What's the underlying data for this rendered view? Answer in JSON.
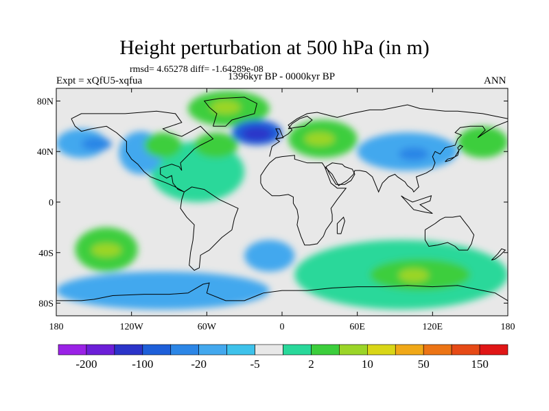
{
  "title": "Height perturbation at 500 hPa (in m)",
  "rmsd_text": "rmsd= 4.65278  diff= -1.64289e-08",
  "experiment": "Expt = xQfU5-xqfua",
  "period": "1396kyr BP - 0000kyr BP",
  "season": "ANN",
  "x_axis": {
    "ticks": [
      "180",
      "120W",
      "60W",
      "0",
      "60E",
      "120E",
      "180"
    ]
  },
  "y_axis": {
    "ticks": [
      "80N",
      "40N",
      "0",
      "40S",
      "80S"
    ]
  },
  "colorbar": {
    "colors": [
      "#9a22e6",
      "#6c1fd8",
      "#2b34c9",
      "#1e5fd9",
      "#2c86e6",
      "#43a8ee",
      "#3ec2eb",
      "#e8e8e8",
      "#29d89a",
      "#3cce3c",
      "#9bd528",
      "#d9d617",
      "#f0a818",
      "#ec7415",
      "#e64a16",
      "#e01616"
    ],
    "labels": [
      "-200",
      "-100",
      "-20",
      "-5",
      "2",
      "10",
      "50",
      "150"
    ]
  },
  "chart_data": {
    "type": "heatmap",
    "title": "Height perturbation at 500 hPa (in m)",
    "units": "m",
    "variable": "500 hPa geopotential height perturbation",
    "experiment": "Expt = xQfU5-xqfua",
    "period": "1396kyr BP - 0000kyr BP",
    "season": "ANN",
    "rmsd": 4.65278,
    "diff": -1.64289e-08,
    "xlim": [
      -180,
      180
    ],
    "ylim": [
      -90,
      90
    ],
    "xticks": [
      "180",
      "120W",
      "60W",
      "0",
      "60E",
      "120E",
      "180"
    ],
    "yticks": [
      "80N",
      "40N",
      "0",
      "40S",
      "80S"
    ],
    "contour_levels": [
      "-200",
      "-100",
      "-20",
      "-5",
      "2",
      "10",
      "50",
      "150"
    ],
    "regions": [
      {
        "lon": [
          -105,
          -30
        ],
        "lat": [
          0,
          48
        ],
        "level": "2 to 10",
        "shape": "blob"
      },
      {
        "lon": [
          -130,
          -95
        ],
        "lat": [
          22,
          56
        ],
        "level": "-5 to -20",
        "shape": "blob"
      },
      {
        "lon": [
          -180,
          -140
        ],
        "lat": [
          35,
          58
        ],
        "level": "-5 to -20",
        "shape": "blob"
      },
      {
        "lon": [
          -110,
          -80
        ],
        "lat": [
          35,
          55
        ],
        "level": "10 to 50",
        "shape": "blob"
      },
      {
        "lon": [
          -70,
          -35
        ],
        "lat": [
          35,
          55
        ],
        "level": "10 to 50",
        "shape": "blob"
      },
      {
        "lon": [
          -75,
          -10
        ],
        "lat": [
          60,
          88
        ],
        "level": "10 to 50",
        "shape": "blob"
      },
      {
        "lon": [
          -40,
          0
        ],
        "lat": [
          45,
          65
        ],
        "level": "-20 to -100",
        "shape": "blob"
      },
      {
        "lon": [
          5,
          60
        ],
        "lat": [
          35,
          65
        ],
        "level": "10 to 50",
        "shape": "blob"
      },
      {
        "lon": [
          60,
          140
        ],
        "lat": [
          25,
          55
        ],
        "level": "-5 to -20",
        "shape": "blob"
      },
      {
        "lon": [
          140,
          180
        ],
        "lat": [
          35,
          60
        ],
        "level": "10 to 50",
        "shape": "blob"
      },
      {
        "lon": [
          -165,
          -115
        ],
        "lat": [
          -55,
          -20
        ],
        "level": "10 to 50",
        "shape": "blob"
      },
      {
        "lon": [
          -30,
          10
        ],
        "lat": [
          -55,
          -30
        ],
        "level": "-5 to -20",
        "shape": "blob"
      },
      {
        "lon": [
          10,
          180
        ],
        "lat": [
          -85,
          -30
        ],
        "level": "2 to 10",
        "shape": "band"
      },
      {
        "lon": [
          70,
          150
        ],
        "lat": [
          -70,
          -45
        ],
        "level": "10 to 50",
        "shape": "blob"
      },
      {
        "lon": [
          -180,
          -10
        ],
        "lat": [
          -85,
          -55
        ],
        "level": "-5 to -20",
        "shape": "band"
      }
    ]
  }
}
